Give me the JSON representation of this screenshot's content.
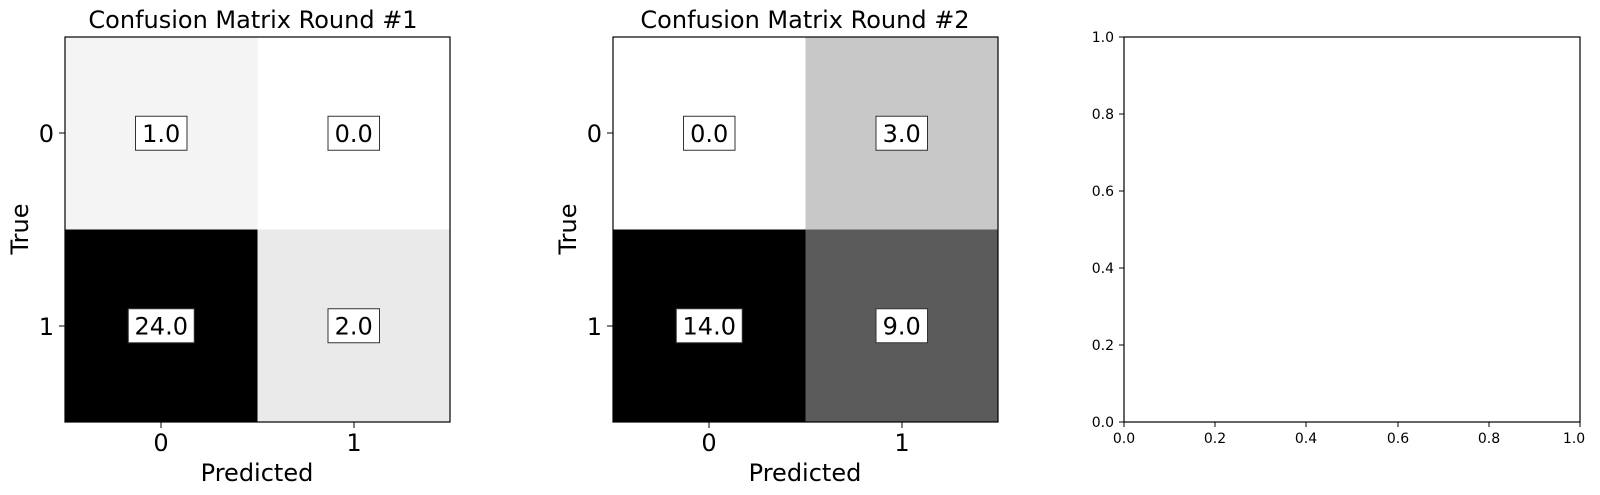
{
  "chart_data": [
    {
      "type": "heatmap",
      "title": "Confusion Matrix Round #1",
      "xlabel": "Predicted",
      "ylabel": "True",
      "x_categories": [
        "0",
        "1"
      ],
      "y_categories": [
        "0",
        "1"
      ],
      "values": [
        [
          1.0,
          0.0
        ],
        [
          24.0,
          2.0
        ]
      ],
      "cell_labels": [
        [
          "1.0",
          "0.0"
        ],
        [
          "24.0",
          "2.0"
        ]
      ],
      "colormap": "greys",
      "grid": false
    },
    {
      "type": "heatmap",
      "title": "Confusion Matrix Round #2",
      "xlabel": "Predicted",
      "ylabel": "True",
      "x_categories": [
        "0",
        "1"
      ],
      "y_categories": [
        "0",
        "1"
      ],
      "values": [
        [
          0.0,
          3.0
        ],
        [
          14.0,
          9.0
        ]
      ],
      "cell_labels": [
        [
          "0.0",
          "3.0"
        ],
        [
          "14.0",
          "9.0"
        ]
      ],
      "colormap": "greys",
      "grid": false
    },
    {
      "type": "scatter",
      "title": "",
      "xlabel": "",
      "ylabel": "",
      "xlim": [
        0.0,
        1.0
      ],
      "ylim": [
        0.0,
        1.0
      ],
      "x_ticks": [
        "0.0",
        "0.2",
        "0.4",
        "0.6",
        "0.8",
        "1.0"
      ],
      "y_ticks": [
        "0.0",
        "0.2",
        "0.4",
        "0.6",
        "0.8",
        "1.0"
      ],
      "series": [],
      "grid": false
    }
  ]
}
